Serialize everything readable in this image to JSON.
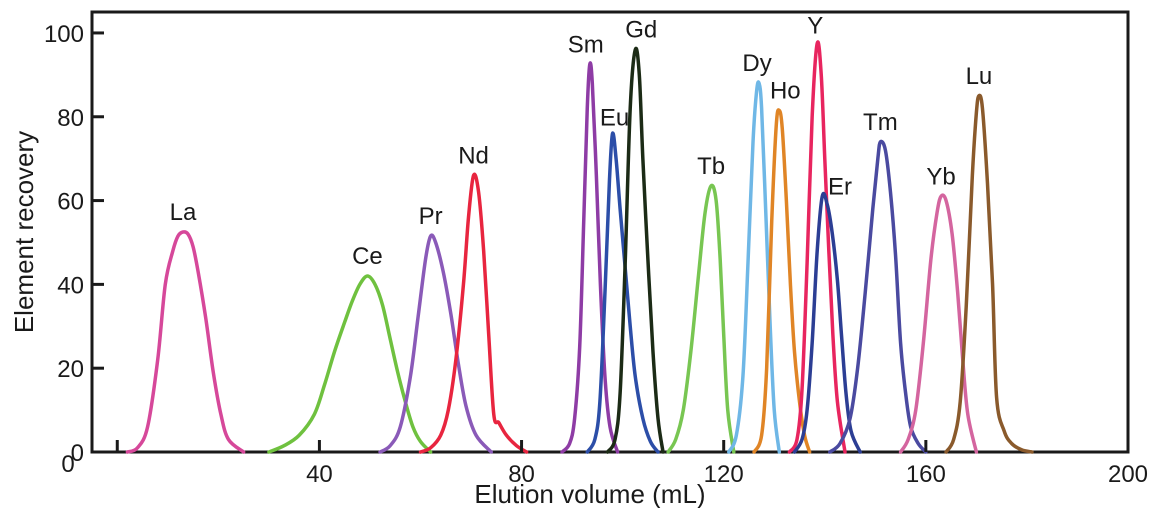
{
  "chart_data": {
    "type": "line",
    "title": "",
    "xlabel": "Elution volume (mL)",
    "ylabel": "Element recovery",
    "xlim": [
      -5,
      200
    ],
    "ylim": [
      0,
      105
    ],
    "x_ticks": [
      0,
      40,
      80,
      120,
      160,
      200
    ],
    "x_tick_labels": [
      "",
      "40",
      "80",
      "120",
      "160",
      "200"
    ],
    "y_ticks": [
      0,
      20,
      40,
      60,
      80,
      100
    ],
    "y_tick_labels": [
      "0",
      "20",
      "40",
      "60",
      "80",
      "100"
    ],
    "y_zero_label": "0",
    "grid": false,
    "legend": "none",
    "series": [
      {
        "name": "La",
        "color": "#d6489a",
        "peak_x": 13,
        "peak_y": 52.5,
        "start_x": 2,
        "end_x": 25,
        "points": [
          [
            2,
            0
          ],
          [
            4,
            1
          ],
          [
            6,
            6
          ],
          [
            8,
            22
          ],
          [
            9.5,
            40
          ],
          [
            11,
            48
          ],
          [
            12,
            51.5
          ],
          [
            13,
            52.5
          ],
          [
            14,
            52
          ],
          [
            15,
            49
          ],
          [
            16,
            43
          ],
          [
            17.5,
            32
          ],
          [
            19,
            19
          ],
          [
            20.5,
            9
          ],
          [
            22,
            3
          ],
          [
            25,
            0
          ]
        ]
      },
      {
        "name": "Ce",
        "color": "#6fc13f",
        "peak_x": 49.5,
        "peak_y": 42,
        "start_x": 30,
        "end_x": 62,
        "points": [
          [
            30,
            0
          ],
          [
            33,
            1.5
          ],
          [
            36,
            4
          ],
          [
            39,
            9
          ],
          [
            41,
            16
          ],
          [
            43,
            24
          ],
          [
            45,
            31
          ],
          [
            46.5,
            36
          ],
          [
            48,
            40
          ],
          [
            49.5,
            42
          ],
          [
            51,
            40
          ],
          [
            52.5,
            35
          ],
          [
            54,
            27
          ],
          [
            55.5,
            19
          ],
          [
            57,
            12
          ],
          [
            58.5,
            6
          ],
          [
            60,
            2.5
          ],
          [
            62,
            0
          ]
        ]
      },
      {
        "name": "Pr",
        "color": "#8a5ab8",
        "peak_x": 62,
        "peak_y": 51.5,
        "start_x": 52,
        "end_x": 74,
        "points": [
          [
            52,
            0
          ],
          [
            54,
            1.5
          ],
          [
            56,
            6
          ],
          [
            58,
            18
          ],
          [
            59.5,
            32
          ],
          [
            61,
            46
          ],
          [
            62,
            51.5
          ],
          [
            63,
            50
          ],
          [
            64.5,
            43
          ],
          [
            66,
            33
          ],
          [
            67.5,
            21
          ],
          [
            69,
            11
          ],
          [
            71,
            4
          ],
          [
            74,
            0
          ]
        ]
      },
      {
        "name": "Nd",
        "color": "#e8253f",
        "peak_x": 70.5,
        "peak_y": 66,
        "start_x": 60,
        "end_x": 81,
        "points": [
          [
            60,
            0
          ],
          [
            62,
            1
          ],
          [
            64,
            4
          ],
          [
            65.5,
            10
          ],
          [
            67,
            22
          ],
          [
            68.5,
            40
          ],
          [
            69.5,
            56
          ],
          [
            70.5,
            66
          ],
          [
            71.5,
            62
          ],
          [
            72.5,
            48
          ],
          [
            73.5,
            28
          ],
          [
            74.5,
            9
          ],
          [
            75.5,
            7
          ],
          [
            77,
            4
          ],
          [
            79,
            1.5
          ],
          [
            81,
            0
          ]
        ]
      },
      {
        "name": "Sm",
        "color": "#8e3ca5",
        "peak_x": 93.5,
        "peak_y": 92.5,
        "start_x": 88,
        "end_x": 99,
        "points": [
          [
            88,
            0
          ],
          [
            89.5,
            2
          ],
          [
            90.5,
            8
          ],
          [
            91.5,
            25
          ],
          [
            92.3,
            55
          ],
          [
            93,
            82
          ],
          [
            93.5,
            92.5
          ],
          [
            94,
            88
          ],
          [
            94.8,
            66
          ],
          [
            95.6,
            40
          ],
          [
            96.5,
            18
          ],
          [
            97.5,
            6
          ],
          [
            99,
            0
          ]
        ]
      },
      {
        "name": "Eu",
        "color": "#2c4ea8",
        "peak_x": 98,
        "peak_y": 76,
        "start_x": 93,
        "end_x": 107,
        "points": [
          [
            93,
            0
          ],
          [
            94.5,
            3
          ],
          [
            95.5,
            12
          ],
          [
            96.5,
            38
          ],
          [
            97.4,
            65
          ],
          [
            98,
            76
          ],
          [
            98.7,
            70
          ],
          [
            99.5,
            58
          ],
          [
            100.5,
            44
          ],
          [
            101.5,
            30
          ],
          [
            102.5,
            18
          ],
          [
            104,
            8
          ],
          [
            105.5,
            2.5
          ],
          [
            107,
            0
          ]
        ]
      },
      {
        "name": "Gd",
        "color": "#1c2b16",
        "peak_x": 102.5,
        "peak_y": 96,
        "start_x": 97,
        "end_x": 108,
        "points": [
          [
            97,
            0
          ],
          [
            98.5,
            3
          ],
          [
            99.5,
            14
          ],
          [
            100.5,
            45
          ],
          [
            101.5,
            82
          ],
          [
            102.5,
            96
          ],
          [
            103.3,
            90
          ],
          [
            104,
            70
          ],
          [
            105,
            46
          ],
          [
            106,
            24
          ],
          [
            107,
            8
          ],
          [
            108,
            0
          ]
        ]
      },
      {
        "name": "Tb",
        "color": "#78c652",
        "peak_x": 117.5,
        "peak_y": 63.5,
        "start_x": 109,
        "end_x": 122,
        "points": [
          [
            109,
            0
          ],
          [
            110.5,
            3
          ],
          [
            112,
            10
          ],
          [
            113.5,
            24
          ],
          [
            115,
            42
          ],
          [
            116.3,
            57
          ],
          [
            117.5,
            63.5
          ],
          [
            118.5,
            60
          ],
          [
            119.3,
            46
          ],
          [
            120,
            28
          ],
          [
            120.8,
            10
          ],
          [
            122,
            0
          ]
        ]
      },
      {
        "name": "Dy",
        "color": "#6fb7e6",
        "peak_x": 127,
        "peak_y": 88,
        "start_x": 121,
        "end_x": 131,
        "points": [
          [
            121,
            0
          ],
          [
            122.5,
            4
          ],
          [
            123.8,
            18
          ],
          [
            124.8,
            45
          ],
          [
            125.8,
            74
          ],
          [
            126.5,
            86
          ],
          [
            127,
            88
          ],
          [
            127.5,
            82
          ],
          [
            128.3,
            58
          ],
          [
            129.2,
            30
          ],
          [
            130,
            10
          ],
          [
            131,
            0
          ]
        ]
      },
      {
        "name": "Ho",
        "color": "#e08526",
        "peak_x": 131,
        "peak_y": 81.5,
        "start_x": 126,
        "end_x": 137,
        "points": [
          [
            126,
            0
          ],
          [
            127.5,
            4
          ],
          [
            128.5,
            20
          ],
          [
            129.5,
            55
          ],
          [
            130.4,
            78
          ],
          [
            131,
            81.5
          ],
          [
            131.6,
            77
          ],
          [
            132.4,
            60
          ],
          [
            133.2,
            40
          ],
          [
            134,
            24
          ],
          [
            135,
            12
          ],
          [
            136,
            4
          ],
          [
            137,
            0
          ]
        ]
      },
      {
        "name": "Y",
        "color": "#e8255f",
        "peak_x": 138.5,
        "peak_y": 97.5,
        "start_x": 133,
        "end_x": 144,
        "points": [
          [
            133,
            0
          ],
          [
            134.5,
            3
          ],
          [
            135.5,
            15
          ],
          [
            136.5,
            45
          ],
          [
            137.5,
            80
          ],
          [
            138.5,
            97.5
          ],
          [
            139.3,
            90
          ],
          [
            140,
            70
          ],
          [
            140.8,
            48
          ],
          [
            141.6,
            28
          ],
          [
            142.5,
            12
          ],
          [
            144,
            0
          ]
        ]
      },
      {
        "name": "Er",
        "color": "#2c3e94",
        "peak_x": 139.5,
        "peak_y": 61,
        "start_x": 134,
        "end_x": 147,
        "points": [
          [
            134,
            0
          ],
          [
            135.5,
            3
          ],
          [
            136.5,
            10
          ],
          [
            137.5,
            26
          ],
          [
            138.5,
            48
          ],
          [
            139.5,
            61
          ],
          [
            140.5,
            59
          ],
          [
            141.5,
            52
          ],
          [
            142.5,
            41
          ],
          [
            143.3,
            28
          ],
          [
            144.2,
            14
          ],
          [
            145.2,
            5
          ],
          [
            147,
            0
          ]
        ]
      },
      {
        "name": "Tm",
        "color": "#4a4aa0",
        "peak_x": 151,
        "peak_y": 74,
        "start_x": 141,
        "end_x": 160,
        "points": [
          [
            141,
            0
          ],
          [
            143,
            2
          ],
          [
            145,
            8
          ],
          [
            146.5,
            20
          ],
          [
            148,
            38
          ],
          [
            149.5,
            58
          ],
          [
            150.5,
            70
          ],
          [
            151,
            74
          ],
          [
            152,
            72
          ],
          [
            153,
            62
          ],
          [
            154,
            47
          ],
          [
            155,
            26
          ],
          [
            156,
            14
          ],
          [
            157,
            6
          ],
          [
            158.5,
            2
          ],
          [
            160,
            0
          ]
        ]
      },
      {
        "name": "Yb",
        "color": "#d4659f",
        "peak_x": 163,
        "peak_y": 61,
        "start_x": 155,
        "end_x": 170,
        "points": [
          [
            155,
            0
          ],
          [
            156.5,
            3
          ],
          [
            158,
            10
          ],
          [
            159.5,
            26
          ],
          [
            161,
            46
          ],
          [
            162.2,
            57
          ],
          [
            163,
            61
          ],
          [
            164,
            60
          ],
          [
            165.2,
            52
          ],
          [
            166.3,
            38
          ],
          [
            167.3,
            22
          ],
          [
            168.3,
            9
          ],
          [
            170,
            0
          ]
        ]
      },
      {
        "name": "Lu",
        "color": "#8a5a2c",
        "peak_x": 170.5,
        "peak_y": 85,
        "start_x": 164,
        "end_x": 181,
        "points": [
          [
            164,
            0
          ],
          [
            165.5,
            3
          ],
          [
            166.8,
            12
          ],
          [
            168,
            35
          ],
          [
            169.2,
            66
          ],
          [
            170,
            81
          ],
          [
            170.5,
            85
          ],
          [
            171.2,
            82
          ],
          [
            172.2,
            64
          ],
          [
            173.2,
            40
          ],
          [
            174,
            13
          ],
          [
            175.5,
            5
          ],
          [
            177,
            2
          ],
          [
            179,
            0.5
          ],
          [
            181,
            0
          ]
        ]
      }
    ]
  }
}
